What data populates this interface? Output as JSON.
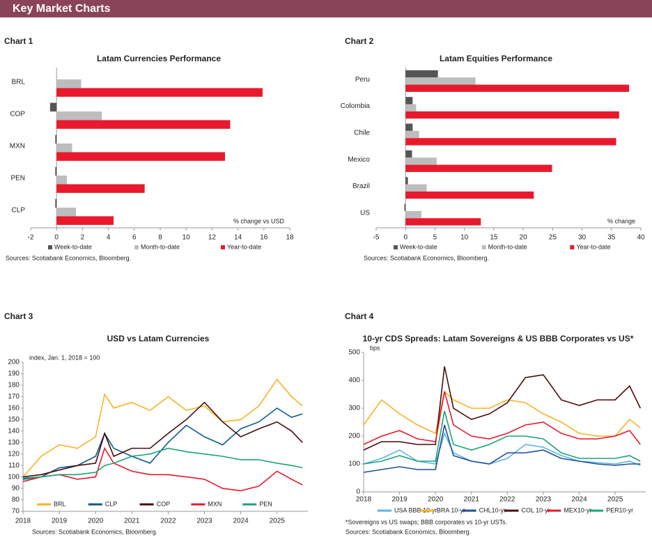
{
  "header": {
    "title": "Key Market Charts"
  },
  "chart_data": [
    {
      "type": "bar",
      "label": "Chart 1",
      "title": "Latam Currencies Performance",
      "annotation": "% change vs USD",
      "categories": [
        "BRL",
        "COP",
        "MXN",
        "PEN",
        "CLP"
      ],
      "series": [
        {
          "name": "Week-to-date",
          "color": "#555555",
          "values": [
            0,
            -0.5,
            -0.1,
            -0.1,
            -0.1
          ]
        },
        {
          "name": "Month-to-date",
          "color": "#bdbdbd",
          "values": [
            1.9,
            3.5,
            1.2,
            0.8,
            1.5
          ]
        },
        {
          "name": "Year-to-date",
          "color": "#e8192c",
          "values": [
            15.9,
            13.4,
            13.0,
            6.8,
            4.4
          ]
        }
      ],
      "xlim": [
        -2,
        18
      ],
      "xticks": [
        -2,
        0,
        2,
        4,
        6,
        8,
        10,
        12,
        14,
        16,
        18
      ],
      "sources": "Sources: Scotiabank Economics, Bloomberg."
    },
    {
      "type": "bar",
      "label": "Chart 2",
      "title": "Latam Equities Performance",
      "annotation": "% change",
      "categories": [
        "Peru",
        "Colombia",
        "Chile",
        "Mexico",
        "Brazil",
        "US"
      ],
      "series": [
        {
          "name": "Week-to-date",
          "color": "#555555",
          "values": [
            5.5,
            1.2,
            1.2,
            1.1,
            0.4,
            -0.2
          ]
        },
        {
          "name": "Month-to-date",
          "color": "#bdbdbd",
          "values": [
            11.9,
            1.8,
            2.3,
            5.3,
            3.6,
            2.7
          ]
        },
        {
          "name": "Year-to-date",
          "color": "#e8192c",
          "values": [
            38.0,
            36.3,
            35.8,
            24.9,
            21.8,
            12.8
          ]
        }
      ],
      "xlim": [
        -5,
        40
      ],
      "xticks": [
        -5,
        0,
        5,
        10,
        15,
        20,
        25,
        30,
        35,
        40
      ],
      "sources": "Sources: Scotiabank Economics, Bloomberg."
    },
    {
      "type": "line",
      "label": "Chart 3",
      "title": "USD vs Latam Currencies",
      "annotation": "index, Jan. 1, 2018 = 100",
      "x": [
        2018,
        2018.5,
        2019,
        2019.5,
        2020,
        2020.25,
        2020.5,
        2021,
        2021.5,
        2022,
        2022.5,
        2023,
        2023.5,
        2024,
        2024.5,
        2025,
        2025.4,
        2025.7
      ],
      "series": [
        {
          "name": "BRL",
          "color": "#f5b324",
          "values": [
            100,
            118,
            128,
            125,
            135,
            172,
            160,
            165,
            158,
            170,
            158,
            162,
            148,
            150,
            162,
            185,
            170,
            162
          ]
        },
        {
          "name": "CLP",
          "color": "#0e5a8a",
          "values": [
            98,
            100,
            108,
            110,
            118,
            138,
            125,
            118,
            112,
            130,
            145,
            135,
            128,
            142,
            148,
            160,
            152,
            155
          ]
        },
        {
          "name": "COP",
          "color": "#4a0a0a",
          "values": [
            100,
            102,
            106,
            110,
            112,
            138,
            118,
            125,
            125,
            138,
            150,
            165,
            148,
            135,
            142,
            148,
            140,
            130
          ]
        },
        {
          "name": "MXN",
          "color": "#e8192c",
          "values": [
            96,
            100,
            102,
            98,
            100,
            125,
            112,
            105,
            102,
            102,
            100,
            98,
            90,
            88,
            92,
            105,
            98,
            93
          ]
        },
        {
          "name": "PEN",
          "color": "#1aa37a",
          "values": [
            99,
            100,
            102,
            102,
            104,
            110,
            112,
            118,
            120,
            125,
            122,
            120,
            118,
            115,
            115,
            112,
            110,
            108
          ]
        }
      ],
      "xlim": [
        2018,
        2025.85
      ],
      "xticks": [
        2018,
        2019,
        2020,
        2021,
        2022,
        2023,
        2024,
        2025
      ],
      "ylim": [
        70,
        200
      ],
      "yticks": [
        70,
        80,
        90,
        100,
        110,
        120,
        130,
        140,
        150,
        160,
        170,
        180,
        190,
        200
      ],
      "sources": "Sources: Scotiabank Economics, Bloomberg."
    },
    {
      "type": "line",
      "label": "Chart 4",
      "title": "10-yr CDS Spreads: Latam Sovereigns & US BBB Corporates vs US*",
      "annotation": "bps",
      "x": [
        2018,
        2018.5,
        2019,
        2019.5,
        2020,
        2020.25,
        2020.5,
        2021,
        2021.5,
        2022,
        2022.5,
        2023,
        2023.5,
        2024,
        2024.5,
        2025,
        2025.4,
        2025.7
      ],
      "series": [
        {
          "name": "USA BBB 10-yr",
          "color": "#5bb4e5",
          "values": [
            100,
            120,
            150,
            110,
            100,
            210,
            140,
            110,
            100,
            120,
            170,
            160,
            130,
            110,
            105,
            100,
            110,
            95
          ]
        },
        {
          "name": "BRA 10-yr",
          "color": "#f5b324",
          "values": [
            240,
            330,
            280,
            240,
            210,
            360,
            330,
            300,
            300,
            330,
            320,
            280,
            250,
            210,
            200,
            200,
            260,
            230
          ]
        },
        {
          "name": "CHL10-yr",
          "color": "#1f4e96",
          "values": [
            70,
            80,
            90,
            80,
            80,
            240,
            130,
            110,
            100,
            140,
            140,
            150,
            120,
            110,
            100,
            95,
            100,
            100
          ]
        },
        {
          "name": "COL 10-yr",
          "color": "#4a0a0a",
          "values": [
            150,
            180,
            180,
            170,
            170,
            450,
            300,
            260,
            280,
            320,
            410,
            420,
            330,
            310,
            330,
            330,
            380,
            300
          ]
        },
        {
          "name": "MEX10-yr",
          "color": "#e8192c",
          "values": [
            170,
            200,
            220,
            190,
            180,
            360,
            240,
            200,
            190,
            210,
            240,
            250,
            210,
            190,
            190,
            200,
            220,
            170
          ]
        },
        {
          "name": "PER10-yr",
          "color": "#1aa37a",
          "values": [
            100,
            110,
            130,
            110,
            110,
            290,
            170,
            150,
            170,
            200,
            200,
            190,
            140,
            120,
            120,
            120,
            130,
            110
          ]
        }
      ],
      "xlim": [
        2018,
        2025.85
      ],
      "xticks": [
        2018,
        2019,
        2020,
        2021,
        2022,
        2023,
        2024,
        2025
      ],
      "ylim": [
        0,
        500
      ],
      "yticks": [
        0,
        100,
        200,
        300,
        400,
        500
      ],
      "note": "*Sovereigns vs US swaps; BBB corporates vs 10-yr USTs.",
      "sources": "Sources: Scotiabank Economics, Bloomberg."
    }
  ]
}
